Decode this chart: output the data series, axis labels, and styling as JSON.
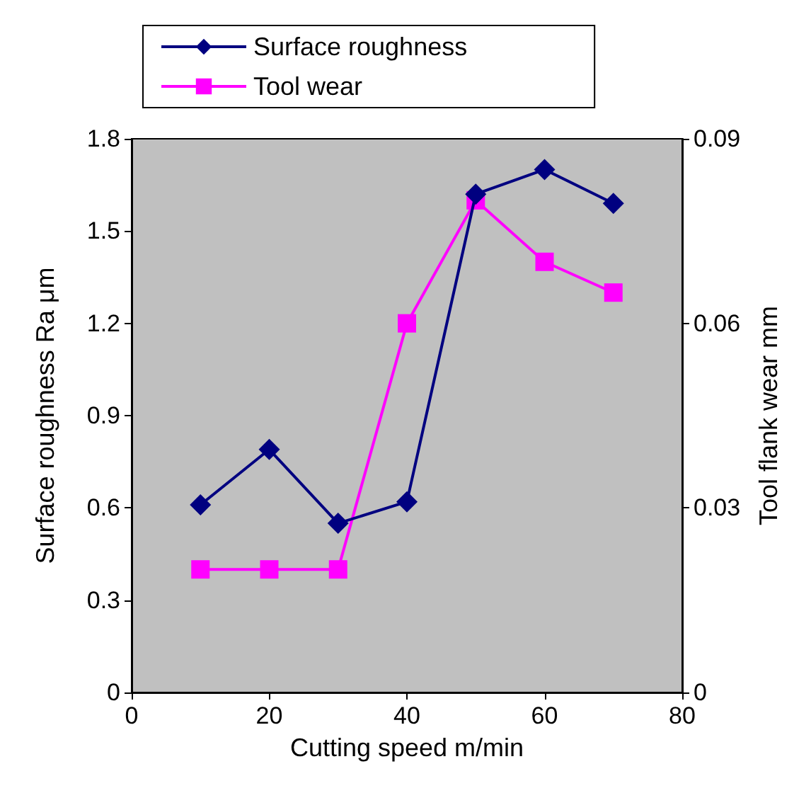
{
  "chart_data": {
    "type": "line",
    "xlabel": "Cutting speed m/min",
    "ylabel": "Surface roughness Ra μm",
    "y2label": "Tool flank wear mm",
    "x": [
      10,
      20,
      30,
      40,
      50,
      60,
      70
    ],
    "series": [
      {
        "name": "Surface roughness",
        "color": "#000080",
        "marker": "diamond",
        "values": [
          0.61,
          0.79,
          0.55,
          0.62,
          1.62,
          1.7,
          1.59
        ]
      },
      {
        "name": "Tool wear",
        "color": "#ff00ff",
        "marker": "square",
        "axis": "y2",
        "values": [
          0.02,
          0.02,
          0.02,
          0.06,
          0.08,
          0.07,
          0.065
        ]
      }
    ],
    "xlim": [
      0,
      80
    ],
    "xticks": [
      0,
      20,
      40,
      60,
      80
    ],
    "ylim": [
      0,
      1.8
    ],
    "yticks": [
      0,
      0.3,
      0.6,
      0.9,
      1.2,
      1.5,
      1.8
    ],
    "y2lim": [
      0,
      0.09
    ],
    "y2ticks": [
      0,
      0.03,
      0.06,
      0.09
    ],
    "grid": false,
    "legend": "top",
    "line_style": "solid"
  }
}
